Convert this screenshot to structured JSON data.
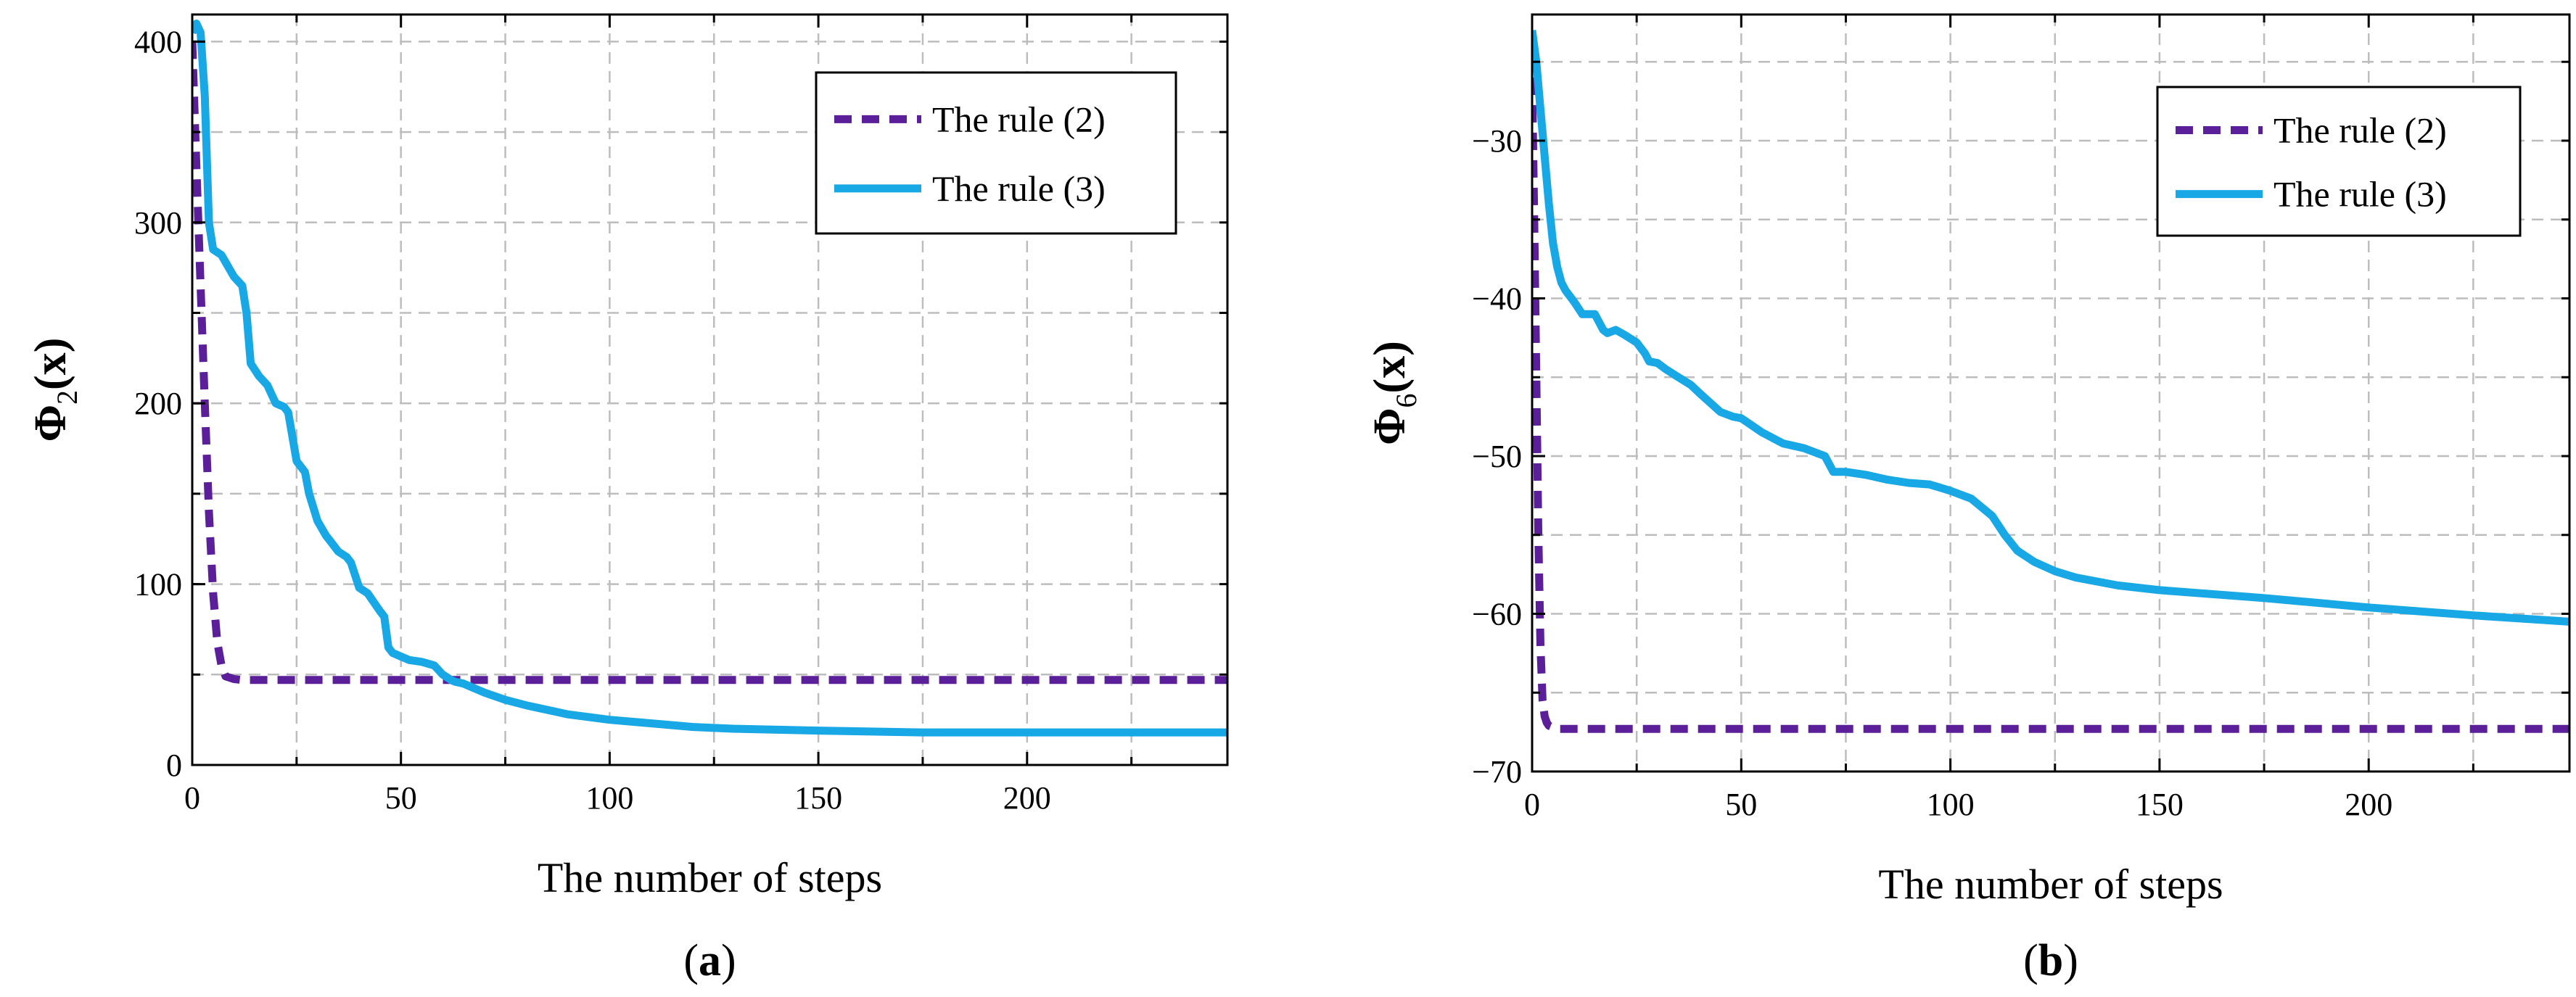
{
  "chart_data": [
    {
      "type": "line",
      "panel_label": "a",
      "xlabel": "The number of steps",
      "ylabel": "Φ₂(x)",
      "ylabel_parts": {
        "base": "Φ",
        "sub": "2",
        "arg": "(x)"
      },
      "xlim": [
        0,
        248
      ],
      "ylim": [
        0,
        415
      ],
      "xticks": [
        0,
        50,
        100,
        150,
        200
      ],
      "yticks": [
        0,
        100,
        200,
        300,
        400
      ],
      "xgrid": [
        25,
        50,
        75,
        100,
        125,
        150,
        175,
        200,
        225
      ],
      "ygrid": [
        50,
        100,
        150,
        200,
        250,
        300,
        350,
        400
      ],
      "legend_position": "top-right",
      "series": [
        {
          "name": "The rule (2)",
          "style": "dashed",
          "color": "#5b1f9a",
          "x": [
            0,
            1,
            2,
            3,
            4,
            5,
            6,
            7,
            8,
            10,
            12,
            15,
            20,
            248
          ],
          "y": [
            400,
            330,
            265,
            200,
            140,
            95,
            68,
            55,
            49,
            47.5,
            47,
            47,
            47,
            47
          ]
        },
        {
          "name": "The rule (3)",
          "style": "solid",
          "color": "#18a8e5",
          "x": [
            0,
            1,
            2,
            3,
            4,
            5,
            7,
            10,
            12,
            13,
            14,
            16,
            18,
            19,
            20,
            22,
            23,
            25,
            27,
            28,
            30,
            32,
            33,
            35,
            37,
            38,
            40,
            42,
            45,
            46,
            47,
            48,
            50,
            52,
            55,
            58,
            60,
            62,
            63,
            65,
            67,
            70,
            75,
            80,
            90,
            100,
            110,
            115,
            120,
            130,
            150,
            175,
            200,
            248
          ],
          "y": [
            405,
            410,
            405,
            370,
            300,
            285,
            282,
            270,
            265,
            250,
            222,
            215,
            210,
            205,
            200,
            198,
            195,
            168,
            162,
            150,
            135,
            127,
            124,
            118,
            115,
            112,
            98,
            95,
            85,
            82,
            65,
            62,
            60,
            58,
            57,
            55,
            50,
            47,
            46,
            45,
            43,
            40,
            36,
            33,
            28,
            25,
            23,
            22,
            21,
            20,
            19,
            18,
            18,
            18
          ]
        }
      ]
    },
    {
      "type": "line",
      "panel_label": "b",
      "xlabel": "The number of steps",
      "ylabel": "Φ₆(x)",
      "ylabel_parts": {
        "base": "Φ",
        "sub": "6",
        "arg": "(x)"
      },
      "xlim": [
        0,
        248
      ],
      "ylim": [
        -70,
        -22
      ],
      "xticks": [
        0,
        50,
        100,
        150,
        200
      ],
      "yticks": [
        -30,
        -40,
        -50,
        -60,
        -70
      ],
      "xgrid": [
        25,
        50,
        75,
        100,
        125,
        150,
        175,
        200,
        225
      ],
      "ygrid": [
        -25,
        -30,
        -35,
        -40,
        -45,
        -50,
        -55,
        -60,
        -65
      ],
      "legend_position": "top-right",
      "series": [
        {
          "name": "The rule (2)",
          "style": "dashed",
          "color": "#5b1f9a",
          "x": [
            0,
            0.5,
            1,
            1.5,
            2,
            2.5,
            3,
            3.5,
            4,
            5,
            6,
            8,
            12,
            248
          ],
          "y": [
            -26,
            -35,
            -45,
            -55,
            -62,
            -65.5,
            -66.5,
            -66.9,
            -67.1,
            -67.2,
            -67.3,
            -67.3,
            -67.3,
            -67.3
          ]
        },
        {
          "name": "The rule (3)",
          "style": "solid",
          "color": "#18a8e5",
          "x": [
            0,
            1,
            2,
            3,
            4,
            5,
            6,
            7,
            8,
            10,
            12,
            15,
            17,
            18,
            20,
            22,
            25,
            27,
            28,
            30,
            32,
            35,
            38,
            40,
            45,
            48,
            50,
            55,
            60,
            65,
            70,
            72,
            75,
            80,
            85,
            90,
            95,
            100,
            105,
            110,
            113,
            116,
            120,
            125,
            130,
            140,
            150,
            175,
            200,
            225,
            248
          ],
          "y": [
            -23,
            -25,
            -28,
            -31,
            -34,
            -36.5,
            -38,
            -39,
            -39.5,
            -40.2,
            -41,
            -41,
            -42,
            -42.2,
            -42,
            -42.3,
            -42.8,
            -43.5,
            -44,
            -44.1,
            -44.5,
            -45,
            -45.5,
            -46,
            -47.2,
            -47.5,
            -47.6,
            -48.5,
            -49.2,
            -49.5,
            -50,
            -51,
            -51,
            -51.2,
            -51.5,
            -51.7,
            -51.8,
            -52.2,
            -52.7,
            -53.8,
            -55,
            -56,
            -56.7,
            -57.3,
            -57.7,
            -58.2,
            -58.5,
            -59,
            -59.6,
            -60.1,
            -60.5
          ]
        }
      ]
    }
  ]
}
